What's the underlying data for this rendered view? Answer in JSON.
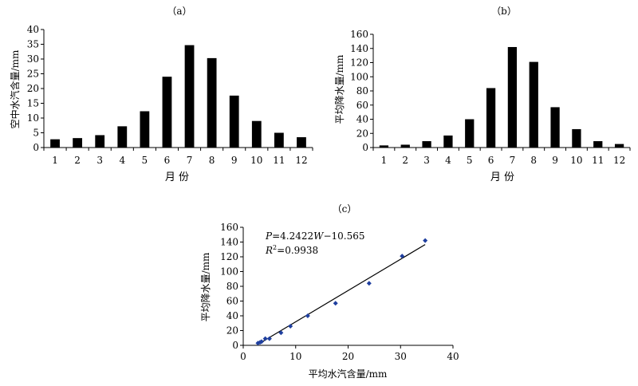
{
  "chart_data": [
    {
      "type": "bar",
      "panel_label": "（a）",
      "xlabel": "月 份",
      "ylabel": "空中水汽含量/mm",
      "categories": [
        "1",
        "2",
        "3",
        "4",
        "5",
        "6",
        "7",
        "8",
        "9",
        "10",
        "11",
        "12"
      ],
      "values": [
        2.8,
        3.2,
        4.2,
        7.2,
        12.3,
        24.0,
        34.7,
        30.3,
        17.6,
        9.0,
        5.0,
        3.5
      ],
      "yticks": [
        "0",
        "5",
        "10",
        "15",
        "20",
        "25",
        "30",
        "35",
        "40"
      ],
      "ylim": [
        0,
        40
      ],
      "grid": false,
      "bar_color": "#000000"
    },
    {
      "type": "bar",
      "panel_label": "（b）",
      "xlabel": "月 份",
      "ylabel": "平均降水量/mm",
      "categories": [
        "1",
        "2",
        "3",
        "4",
        "5",
        "6",
        "7",
        "8",
        "9",
        "10",
        "11",
        "12"
      ],
      "values": [
        3,
        4,
        9,
        17,
        40,
        84,
        142,
        121,
        57,
        26,
        9,
        5
      ],
      "yticks": [
        "0",
        "20",
        "40",
        "60",
        "80",
        "100",
        "120",
        "140",
        "160"
      ],
      "ylim": [
        0,
        160
      ],
      "grid": false,
      "bar_color": "#000000"
    },
    {
      "type": "scatter",
      "panel_label": "（c）",
      "xlabel": "平均水汽含量/mm",
      "ylabel": "平均降水量/mm",
      "x": [
        2.8,
        3.2,
        3.5,
        4.2,
        5.0,
        7.2,
        9.0,
        12.3,
        17.6,
        24.0,
        30.3,
        34.7
      ],
      "y": [
        3,
        4,
        5,
        9,
        9,
        17,
        26,
        40,
        57,
        84,
        121,
        142
      ],
      "xticks": [
        "0",
        "10",
        "20",
        "30",
        "40"
      ],
      "yticks": [
        "0",
        "20",
        "40",
        "60",
        "80",
        "100",
        "120",
        "140",
        "160"
      ],
      "xlim": [
        0,
        40
      ],
      "ylim": [
        0,
        160
      ],
      "marker_color": "#1f3f9f",
      "trendline": {
        "slope": 4.2422,
        "intercept": -10.565,
        "x_range": [
          2.8,
          34.7
        ]
      },
      "equation": {
        "P": "P",
        "eq1": "=4.2422",
        "W": "W",
        "eq2": "−10.565"
      },
      "r2": {
        "R": "R",
        "sup": "2",
        "rest": "=0.9938"
      },
      "grid": false
    }
  ]
}
